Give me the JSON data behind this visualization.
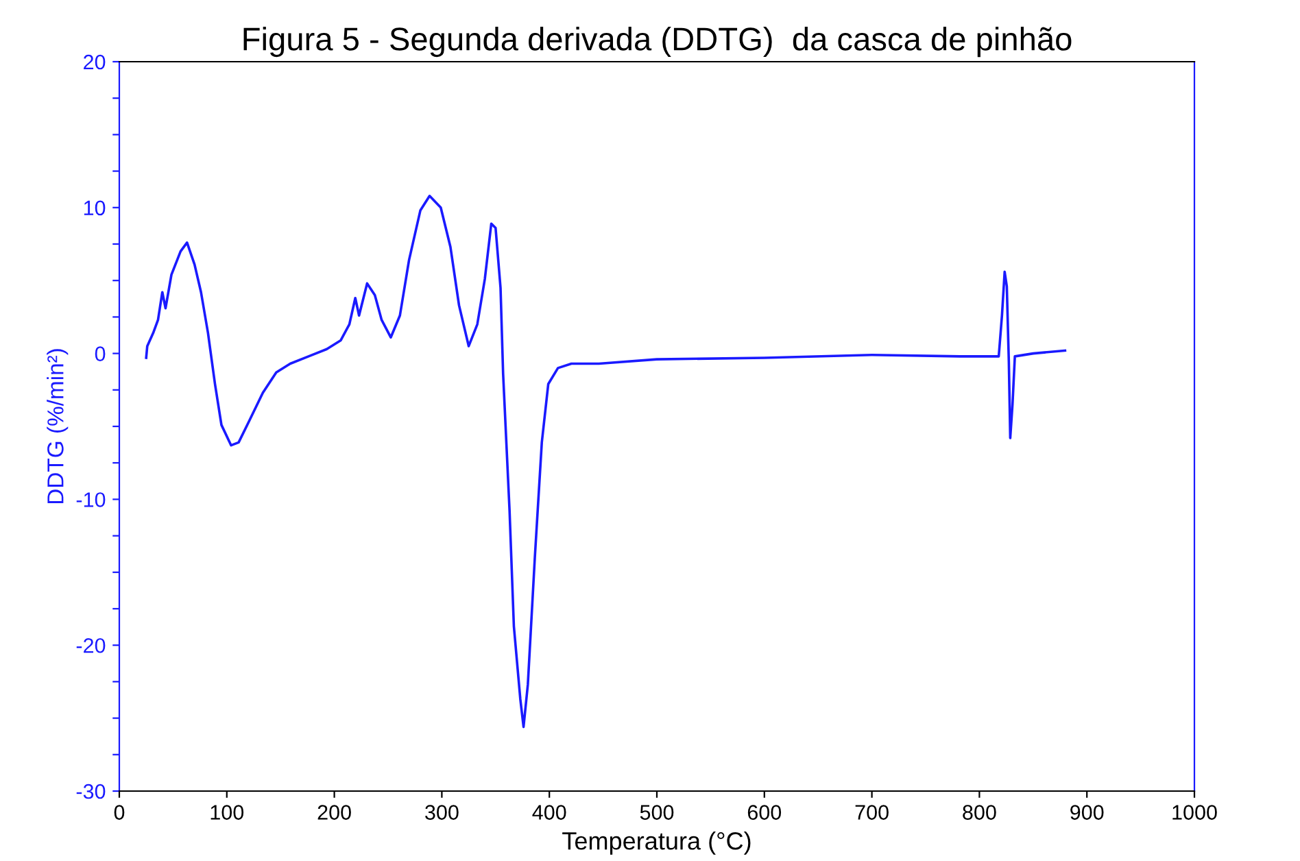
{
  "chart_data": {
    "type": "line",
    "title": "Figura 5 - Segunda derivada (DDTG)  da casca de pinhão",
    "xlabel": "Temperatura (°C)",
    "ylabel": "DDTG (%/min²)",
    "xlim": [
      0,
      1000
    ],
    "ylim": [
      -30,
      20
    ],
    "xticks": [
      0,
      100,
      200,
      300,
      400,
      500,
      600,
      700,
      800,
      900,
      1000
    ],
    "yticks": [
      -30,
      {
        "value": -27.5,
        "label": null
      },
      {
        "value": -25,
        "label": null
      },
      {
        "value": -22.5,
        "label": null
      },
      -20,
      {
        "value": -17.5,
        "label": null
      },
      {
        "value": -15,
        "label": null
      },
      {
        "value": -12.5,
        "label": null
      },
      -10,
      {
        "value": -7.5,
        "label": null
      },
      {
        "value": -5,
        "label": null
      },
      {
        "value": -2.5,
        "label": null
      },
      0,
      {
        "value": 2.5,
        "label": null
      },
      {
        "value": 5,
        "label": null
      },
      {
        "value": 7.5,
        "label": null
      },
      10,
      {
        "value": 12.5,
        "label": null
      },
      {
        "value": 15,
        "label": null
      },
      {
        "value": 17.5,
        "label": null
      },
      20
    ],
    "grid": false,
    "marker": "none",
    "line_style": "solid",
    "series": [
      {
        "color": "#1a1aff",
        "x": [
          25,
          26,
          31.5,
          36,
          40,
          43,
          48.5,
          57,
          63,
          70,
          76,
          82.5,
          89,
          95,
          104,
          111,
          121,
          133.5,
          146,
          159,
          176,
          193,
          206,
          214,
          219.5,
          223,
          230.5,
          237.7,
          244,
          252.5,
          261,
          269.5,
          280,
          288.6,
          299,
          308,
          316,
          325,
          333,
          340,
          346,
          350,
          354.6,
          357,
          363,
          367,
          373,
          376,
          380,
          386.5,
          393,
          399,
          408,
          420.5,
          446,
          500,
          600,
          700,
          782,
          818,
          821,
          823.5,
          825.5,
          827.4,
          828.7,
          830.8,
          833,
          850,
          879.7
        ],
        "values": [
          -0.3,
          0.5,
          1.4,
          2.3,
          4.2,
          3.1,
          5.4,
          7.0,
          7.6,
          6.1,
          4.2,
          1.4,
          -2.1,
          -4.9,
          -6.3,
          -6.1,
          -4.6,
          -2.7,
          -1.3,
          -0.7,
          -0.2,
          0.3,
          0.9,
          2.0,
          3.8,
          2.6,
          4.8,
          4.0,
          2.3,
          1.1,
          2.6,
          6.4,
          9.8,
          10.8,
          10.0,
          7.3,
          3.3,
          0.5,
          2.0,
          5.1,
          8.9,
          8.6,
          4.5,
          -1.4,
          -10.8,
          -18.7,
          -23.7,
          -25.6,
          -22.7,
          -14.0,
          -6.1,
          -2.1,
          -1.0,
          -0.7,
          -0.7,
          -0.4,
          -0.3,
          -0.1,
          -0.2,
          -0.2,
          2.6,
          5.6,
          4.6,
          -0.6,
          -5.8,
          -3.5,
          -0.2,
          0.0,
          0.2
        ]
      }
    ]
  }
}
